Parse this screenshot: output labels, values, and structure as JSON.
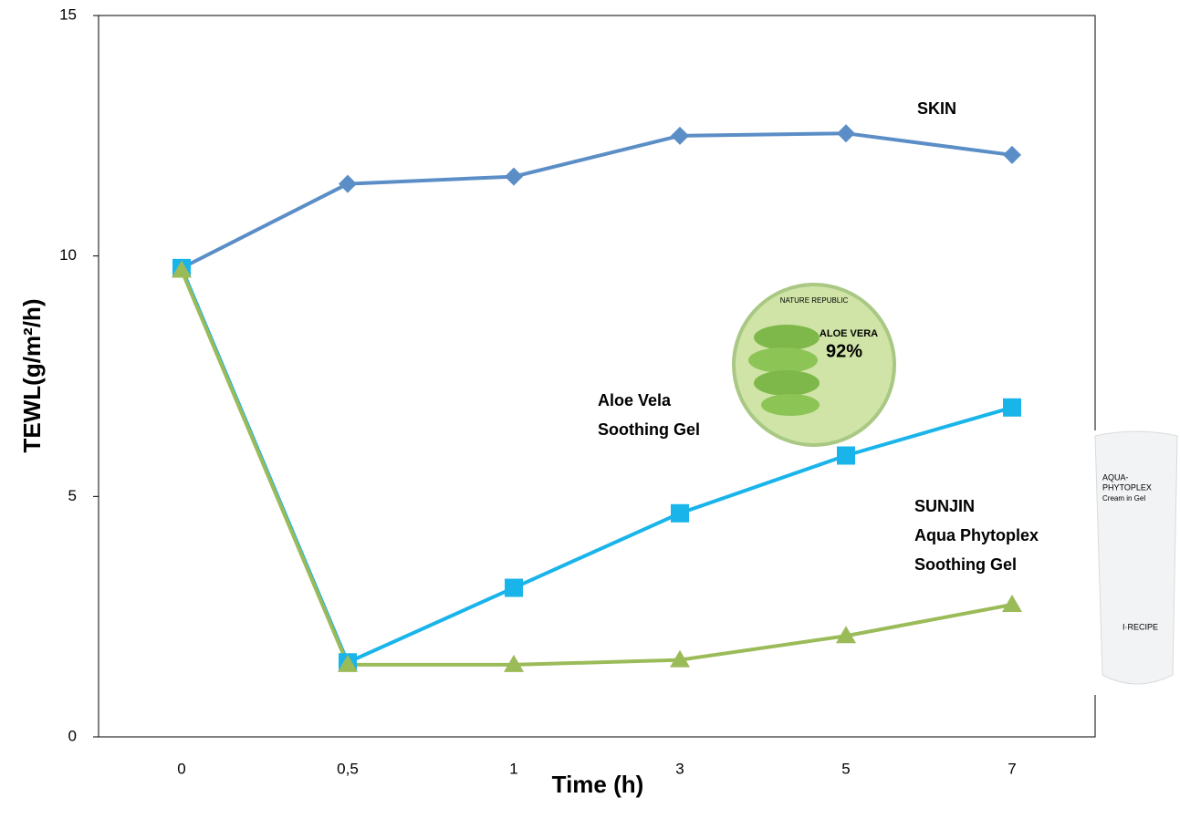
{
  "chart_data": {
    "type": "line",
    "xlabel": "Time (h)",
    "ylabel": "TEWL(g/m²/h)",
    "categories": [
      "0",
      "0,5",
      "1",
      "3",
      "5",
      "7"
    ],
    "ylim": [
      0,
      15
    ],
    "yticks": [
      0,
      5,
      10,
      15
    ],
    "grid": false,
    "series": [
      {
        "name": "SKIN",
        "color": "#5b8ec6",
        "marker": "diamond",
        "values": [
          9.75,
          11.5,
          11.65,
          12.5,
          12.55,
          12.1
        ]
      },
      {
        "name": "Aloe Vela\nSoothing Gel",
        "color": "#19b4ea",
        "marker": "square",
        "values": [
          9.75,
          1.55,
          3.1,
          4.65,
          5.85,
          6.85
        ]
      },
      {
        "name": "SUNJIN\nAqua Phytoplex\nSoothing Gel",
        "color": "#9bbb59",
        "marker": "triangle",
        "values": [
          9.7,
          1.5,
          1.5,
          1.6,
          2.1,
          2.75
        ]
      }
    ]
  },
  "images": {
    "jar": [
      "NATURE REPUBLIC",
      "ALOE VERA",
      "92%"
    ],
    "tube": [
      "AQUA-",
      "PHYTOPLEX",
      "Cream in Gel",
      "I·RECIPE"
    ]
  }
}
